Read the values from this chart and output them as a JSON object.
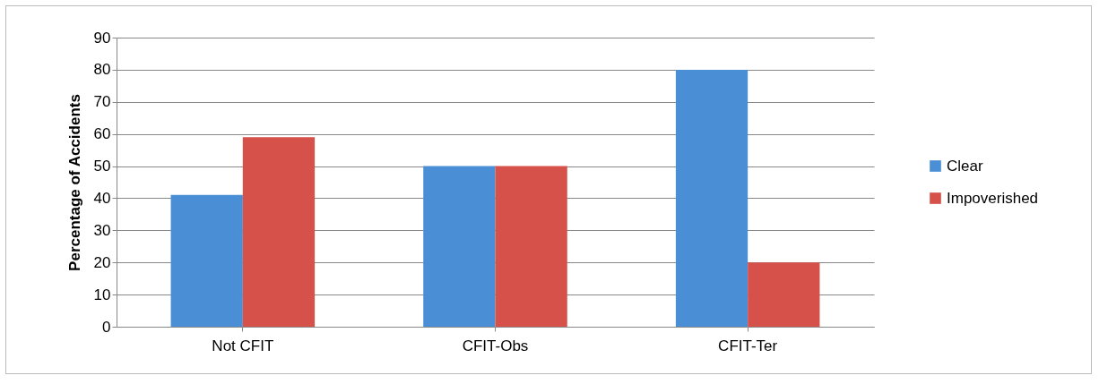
{
  "chart_data": {
    "type": "bar",
    "ylabel": "Percentage of Accidents",
    "categories": [
      "Not CFIT",
      "CFIT-Obs",
      "CFIT-Ter"
    ],
    "series": [
      {
        "name": "Clear",
        "color": "#4a8fd6",
        "values": [
          41,
          50,
          80
        ]
      },
      {
        "name": "Impoverished",
        "color": "#d5514a",
        "values": [
          59,
          50,
          20
        ]
      }
    ],
    "ylim": [
      0,
      90
    ],
    "yticks": [
      0,
      10,
      20,
      30,
      40,
      50,
      60,
      70,
      80,
      90
    ],
    "grid": "y",
    "legend": "right"
  }
}
